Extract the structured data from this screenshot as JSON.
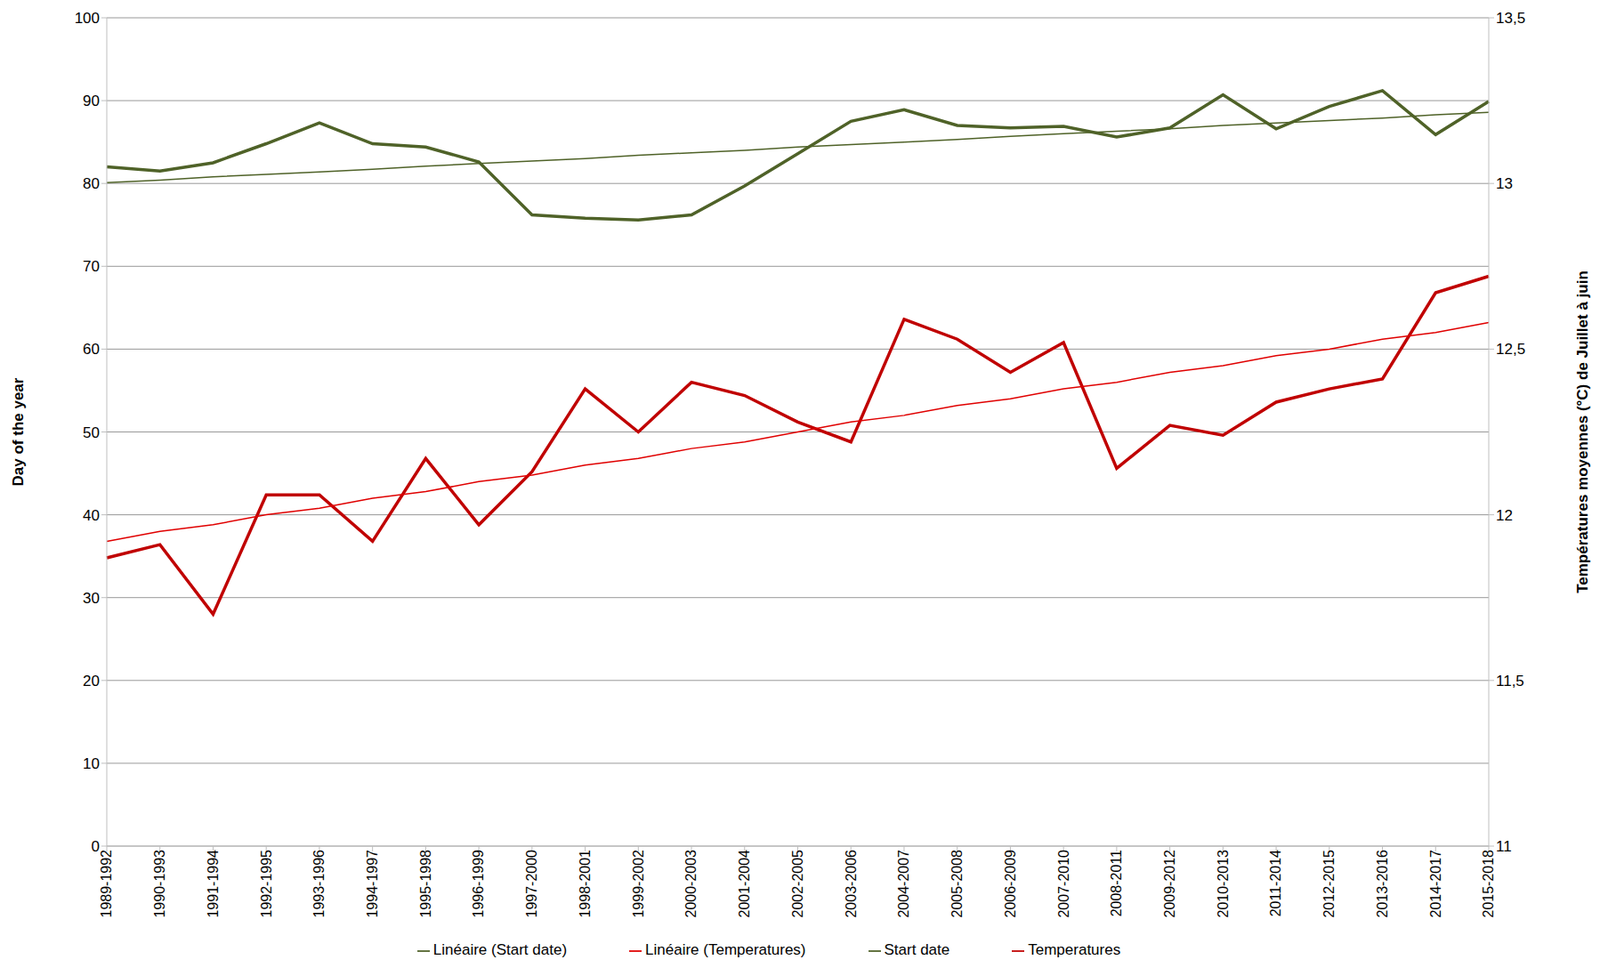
{
  "chart_data": {
    "type": "line",
    "y_label": "Day of the year",
    "y2_label": "Températures moyennes (°C) de Juillet à juin",
    "categories": [
      "1989-1992",
      "1990-1993",
      "1991-1994",
      "1992-1995",
      "1993-1996",
      "1994-1997",
      "1995-1998",
      "1996-1999",
      "1997-2000",
      "1998-2001",
      "1999-2002",
      "2000-2003",
      "2001-2004",
      "2002-2005",
      "2003-2006",
      "2004-2007",
      "2005-2008",
      "2006-2009",
      "2007-2010",
      "2008-2011",
      "2009-2012",
      "2010-2013",
      "2011-2014",
      "2012-2015",
      "2013-2016",
      "2014-2017",
      "2015-2018"
    ],
    "series": [
      {
        "name": "Start date",
        "color": "#4f6228",
        "type": "line",
        "line_style": "solid",
        "values": [
          82,
          81.5,
          82.5,
          84.8,
          87.3,
          84.8,
          84.4,
          82.6,
          76.2,
          75.8,
          75.6,
          76.2,
          79.7,
          83.6,
          87.5,
          88.9,
          87,
          86.7,
          86.9,
          85.6,
          86.7,
          90.7,
          86.6,
          89.3,
          91.2,
          85.9,
          89.9
        ]
      },
      {
        "name": "Temperatures",
        "color": "#c00000",
        "type": "line",
        "line_style": "solid",
        "axis": "y2",
        "values": [
          11.87,
          11.91,
          11.7,
          12.06,
          12.06,
          11.92,
          12.17,
          11.97,
          12.13,
          12.38,
          12.25,
          12.4,
          12.36,
          12.28,
          12.22,
          12.59,
          12.53,
          12.43,
          12.52,
          12.14,
          12.27,
          12.24,
          12.34,
          12.38,
          12.41,
          12.67,
          12.72
        ]
      },
      {
        "name": "Linéaire (Start date)",
        "color": "#4f6228",
        "type": "line",
        "line_style": "solid",
        "values": [
          80.1,
          80.4,
          80.8,
          81.1,
          81.4,
          81.7,
          82.1,
          82.4,
          82.7,
          83.0,
          83.4,
          83.7,
          84.0,
          84.4,
          84.7,
          85.0,
          85.3,
          85.7,
          86.0,
          86.3,
          86.6,
          87.0,
          87.3,
          87.6,
          87.9,
          88.3,
          88.6
        ]
      },
      {
        "name": "Linéaire (Temperatures)",
        "color": "#e00000",
        "type": "line",
        "line_style": "solid",
        "axis": "y2",
        "values": [
          11.92,
          11.95,
          11.97,
          12.0,
          12.02,
          12.05,
          12.07,
          12.1,
          12.12,
          12.15,
          12.17,
          12.2,
          12.22,
          12.25,
          12.28,
          12.3,
          12.33,
          12.35,
          12.38,
          12.4,
          12.43,
          12.45,
          12.48,
          12.5,
          12.53,
          12.55,
          12.58
        ]
      }
    ],
    "ylim": [
      0,
      100
    ],
    "yticks": [
      0,
      10,
      20,
      30,
      40,
      50,
      60,
      70,
      80,
      90,
      100
    ],
    "y2lim": [
      11,
      13.5
    ],
    "y2ticks": [
      11,
      {
        "value": 11.5,
        "label": "11,5"
      },
      12,
      {
        "value": 12.5,
        "label": "12,5"
      },
      13,
      {
        "value": 13.5,
        "label": "13,5"
      }
    ],
    "grid": true,
    "legend": "bottom"
  }
}
